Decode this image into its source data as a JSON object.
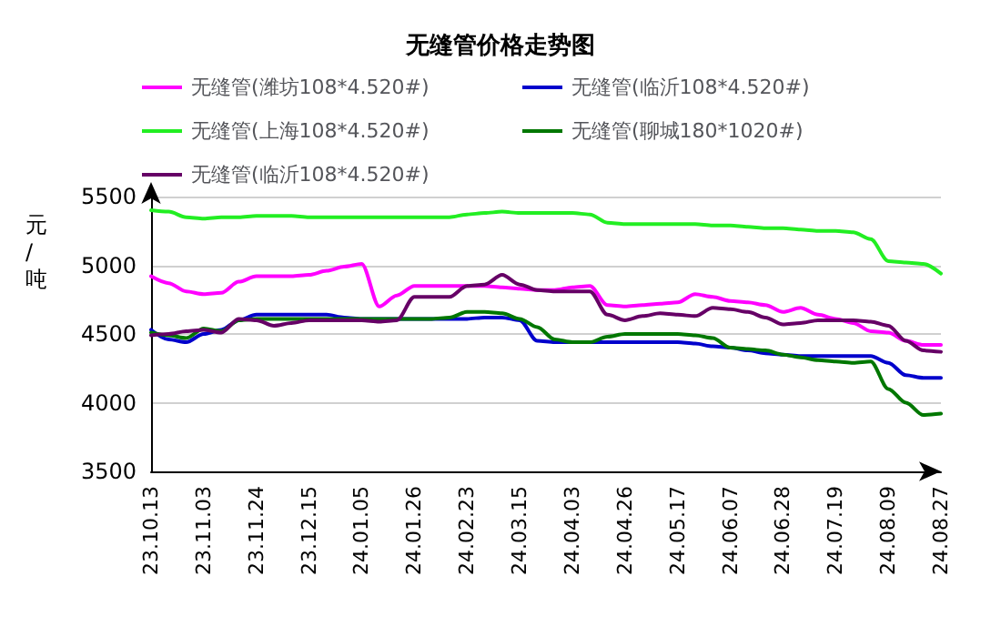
{
  "chart_data": {
    "type": "line",
    "title": "无缝管价格走势图",
    "ylabel": "元/吨",
    "categories": [
      "23.10.13",
      null,
      null,
      "23.11.03",
      null,
      null,
      "23.11.24",
      null,
      null,
      "23.12.15",
      null,
      null,
      "24.01.05",
      null,
      null,
      "24.01.26",
      null,
      null,
      "24.02.23",
      null,
      null,
      "24.03.15",
      null,
      null,
      "24.04.03",
      null,
      null,
      "24.04.26",
      null,
      null,
      "24.05.17",
      null,
      null,
      "24.06.07",
      null,
      null,
      "24.06.28",
      null,
      null,
      "24.07.19",
      null,
      null,
      "24.08.09",
      null,
      null,
      "24.08.27"
    ],
    "series": [
      {
        "name": "无缝管(潍坊108*4.520#)",
        "color": "#ff00ff",
        "values": [
          4920,
          4870,
          4810,
          4790,
          4800,
          4880,
          4920,
          4920,
          4920,
          4930,
          4960,
          4990,
          5010,
          4700,
          4780,
          4850,
          4850,
          4850,
          4850,
          4850,
          4840,
          4830,
          4820,
          4820,
          4840,
          4850,
          4710,
          4700,
          4710,
          4720,
          4730,
          4790,
          4770,
          4740,
          4730,
          4710,
          4660,
          4690,
          4640,
          4610,
          4580,
          4520,
          4510,
          4450,
          4420,
          4420
        ]
      },
      {
        "name": "无缝管(临沂108*4.520#)",
        "color": "#0000cc",
        "values": [
          4530,
          4460,
          4440,
          4500,
          4530,
          4600,
          4640,
          4640,
          4640,
          4640,
          4640,
          4620,
          4610,
          4610,
          4610,
          4610,
          4610,
          4610,
          4610,
          4620,
          4620,
          4600,
          4450,
          4440,
          4440,
          4440,
          4440,
          4440,
          4440,
          4440,
          4440,
          4430,
          4410,
          4400,
          4380,
          4360,
          4350,
          4340,
          4340,
          4340,
          4340,
          4340,
          4290,
          4200,
          4180,
          4180
        ]
      },
      {
        "name": "无缝管(上海108*4.520#)",
        "color": "#22ee22",
        "values": [
          5400,
          5390,
          5350,
          5340,
          5350,
          5350,
          5360,
          5360,
          5360,
          5350,
          5350,
          5350,
          5350,
          5350,
          5350,
          5350,
          5350,
          5350,
          5370,
          5380,
          5390,
          5380,
          5380,
          5380,
          5380,
          5370,
          5310,
          5300,
          5300,
          5300,
          5300,
          5300,
          5290,
          5290,
          5280,
          5270,
          5270,
          5260,
          5250,
          5250,
          5240,
          5190,
          5030,
          5020,
          5010,
          4940
        ]
      },
      {
        "name": "无缝管(聊城180*1020#)",
        "color": "#007700",
        "values": [
          4510,
          4490,
          4470,
          4540,
          4520,
          4600,
          4610,
          4610,
          4610,
          4610,
          4610,
          4610,
          4610,
          4610,
          4610,
          4610,
          4610,
          4620,
          4660,
          4660,
          4650,
          4610,
          4550,
          4460,
          4440,
          4440,
          4480,
          4500,
          4500,
          4500,
          4500,
          4490,
          4470,
          4400,
          4390,
          4380,
          4350,
          4330,
          4310,
          4300,
          4290,
          4300,
          4100,
          4000,
          3910,
          3920
        ]
      },
      {
        "name": "无缝管(临沂108*4.520#)",
        "color": "#660066",
        "values": [
          4490,
          4500,
          4520,
          4530,
          4510,
          4610,
          4600,
          4560,
          4580,
          4600,
          4600,
          4600,
          4600,
          4590,
          4600,
          4770,
          4770,
          4770,
          4850,
          4860,
          4930,
          4860,
          4820,
          4810,
          4810,
          4810,
          4640,
          4600,
          4630,
          4650,
          4640,
          4630,
          4690,
          4680,
          4660,
          4620,
          4570,
          4580,
          4600,
          4600,
          4600,
          4590,
          4560,
          4450,
          4380,
          4370
        ]
      }
    ],
    "ylim": [
      3500,
      5500
    ],
    "yticks": [
      3500,
      4000,
      4500,
      5000,
      5500
    ],
    "grid": "y",
    "legend": "top",
    "marker": "none",
    "line_style": "solid"
  }
}
